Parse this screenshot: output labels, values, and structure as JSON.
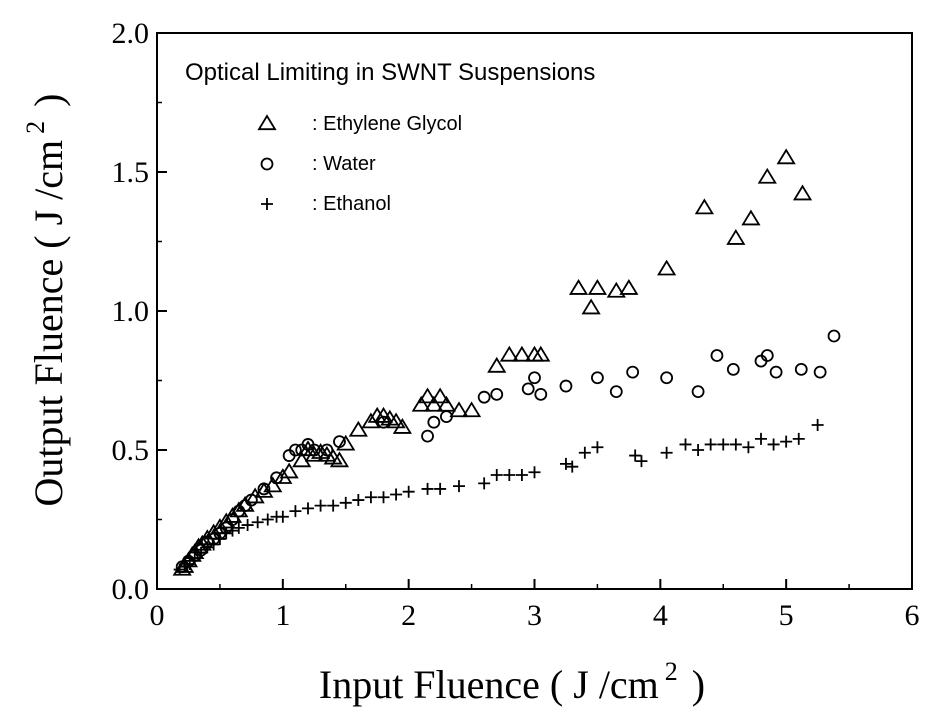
{
  "chart_data": {
    "type": "scatter",
    "title": "Optical Limiting in SWNT Suspensions",
    "xlabel": "Input Fluence ( J /cm 2 )",
    "xlabel_parts": {
      "main": "Input Fluence ( J /cm",
      "sup": "2",
      "close": ")"
    },
    "ylabel": "Output Fluence ( J /cm 2 )",
    "ylabel_parts": {
      "main": "Output Fluence ( J /cm",
      "sup": "2",
      "close": ")"
    },
    "xlim": [
      0,
      6
    ],
    "ylim": [
      0,
      2.0
    ],
    "xticks": [
      "0",
      "1",
      "2",
      "3",
      "4",
      "5",
      "6"
    ],
    "yticks": [
      "0.0",
      "0.5",
      "1.0",
      "1.5",
      "2.0"
    ],
    "legend_placement": "top-left",
    "grid": false,
    "series": [
      {
        "name": ": Ethylene Glycol",
        "marker": "triangle",
        "points": [
          [
            0.2,
            0.07
          ],
          [
            0.22,
            0.08
          ],
          [
            0.25,
            0.1
          ],
          [
            0.28,
            0.12
          ],
          [
            0.3,
            0.13
          ],
          [
            0.33,
            0.15
          ],
          [
            0.36,
            0.16
          ],
          [
            0.4,
            0.18
          ],
          [
            0.45,
            0.2
          ],
          [
            0.5,
            0.22
          ],
          [
            0.55,
            0.24
          ],
          [
            0.6,
            0.26
          ],
          [
            0.65,
            0.28
          ],
          [
            0.7,
            0.3
          ],
          [
            0.78,
            0.33
          ],
          [
            0.85,
            0.35
          ],
          [
            0.92,
            0.37
          ],
          [
            1.0,
            0.4
          ],
          [
            1.05,
            0.42
          ],
          [
            1.15,
            0.46
          ],
          [
            1.2,
            0.5
          ],
          [
            1.25,
            0.48
          ],
          [
            1.3,
            0.49
          ],
          [
            1.35,
            0.48
          ],
          [
            1.4,
            0.47
          ],
          [
            1.45,
            0.46
          ],
          [
            1.5,
            0.52
          ],
          [
            1.6,
            0.57
          ],
          [
            1.7,
            0.6
          ],
          [
            1.75,
            0.62
          ],
          [
            1.8,
            0.62
          ],
          [
            1.85,
            0.61
          ],
          [
            1.9,
            0.6
          ],
          [
            1.95,
            0.58
          ],
          [
            2.1,
            0.66
          ],
          [
            2.15,
            0.69
          ],
          [
            2.2,
            0.66
          ],
          [
            2.25,
            0.69
          ],
          [
            2.3,
            0.66
          ],
          [
            2.4,
            0.64
          ],
          [
            2.5,
            0.64
          ],
          [
            2.7,
            0.8
          ],
          [
            2.8,
            0.84
          ],
          [
            2.9,
            0.84
          ],
          [
            3.0,
            0.84
          ],
          [
            3.05,
            0.84
          ],
          [
            3.35,
            1.08
          ],
          [
            3.45,
            1.01
          ],
          [
            3.5,
            1.08
          ],
          [
            3.65,
            1.07
          ],
          [
            3.75,
            1.08
          ],
          [
            4.05,
            1.15
          ],
          [
            4.35,
            1.37
          ],
          [
            4.6,
            1.26
          ],
          [
            4.72,
            1.33
          ],
          [
            4.85,
            1.48
          ],
          [
            5.0,
            1.55
          ],
          [
            5.13,
            1.42
          ]
        ]
      },
      {
        "name": ": Water",
        "marker": "circle",
        "points": [
          [
            0.2,
            0.08
          ],
          [
            0.25,
            0.1
          ],
          [
            0.3,
            0.12
          ],
          [
            0.35,
            0.14
          ],
          [
            0.4,
            0.17
          ],
          [
            0.45,
            0.18
          ],
          [
            0.5,
            0.2
          ],
          [
            0.55,
            0.22
          ],
          [
            0.6,
            0.25
          ],
          [
            0.65,
            0.28
          ],
          [
            0.7,
            0.3
          ],
          [
            0.75,
            0.32
          ],
          [
            0.85,
            0.36
          ],
          [
            0.95,
            0.4
          ],
          [
            1.05,
            0.48
          ],
          [
            1.1,
            0.5
          ],
          [
            1.15,
            0.5
          ],
          [
            1.2,
            0.52
          ],
          [
            1.25,
            0.5
          ],
          [
            1.35,
            0.5
          ],
          [
            1.45,
            0.53
          ],
          [
            1.8,
            0.6
          ],
          [
            2.15,
            0.55
          ],
          [
            2.2,
            0.6
          ],
          [
            2.3,
            0.62
          ],
          [
            2.6,
            0.69
          ],
          [
            2.7,
            0.7
          ],
          [
            2.95,
            0.72
          ],
          [
            3.0,
            0.76
          ],
          [
            3.05,
            0.7
          ],
          [
            3.25,
            0.73
          ],
          [
            3.5,
            0.76
          ],
          [
            3.65,
            0.71
          ],
          [
            3.78,
            0.78
          ],
          [
            4.05,
            0.76
          ],
          [
            4.3,
            0.71
          ],
          [
            4.45,
            0.84
          ],
          [
            4.58,
            0.79
          ],
          [
            4.8,
            0.82
          ],
          [
            4.85,
            0.84
          ],
          [
            4.92,
            0.78
          ],
          [
            5.12,
            0.79
          ],
          [
            5.27,
            0.78
          ],
          [
            5.38,
            0.91
          ]
        ]
      },
      {
        "name": ":  Ethanol",
        "marker": "plus",
        "points": [
          [
            0.18,
            0.07
          ],
          [
            0.22,
            0.08
          ],
          [
            0.26,
            0.09
          ],
          [
            0.3,
            0.11
          ],
          [
            0.35,
            0.13
          ],
          [
            0.4,
            0.15
          ],
          [
            0.45,
            0.16
          ],
          [
            0.5,
            0.18
          ],
          [
            0.55,
            0.2
          ],
          [
            0.6,
            0.21
          ],
          [
            0.65,
            0.22
          ],
          [
            0.72,
            0.23
          ],
          [
            0.8,
            0.24
          ],
          [
            0.88,
            0.25
          ],
          [
            0.95,
            0.26
          ],
          [
            1.0,
            0.26
          ],
          [
            1.1,
            0.28
          ],
          [
            1.2,
            0.29
          ],
          [
            1.3,
            0.3
          ],
          [
            1.4,
            0.3
          ],
          [
            1.5,
            0.31
          ],
          [
            1.6,
            0.32
          ],
          [
            1.7,
            0.33
          ],
          [
            1.8,
            0.33
          ],
          [
            1.9,
            0.34
          ],
          [
            2.0,
            0.35
          ],
          [
            2.15,
            0.36
          ],
          [
            2.25,
            0.36
          ],
          [
            2.4,
            0.37
          ],
          [
            2.6,
            0.38
          ],
          [
            2.7,
            0.41
          ],
          [
            2.8,
            0.41
          ],
          [
            2.9,
            0.41
          ],
          [
            3.0,
            0.42
          ],
          [
            3.25,
            0.45
          ],
          [
            3.3,
            0.44
          ],
          [
            3.4,
            0.49
          ],
          [
            3.5,
            0.51
          ],
          [
            3.8,
            0.48
          ],
          [
            3.85,
            0.46
          ],
          [
            4.05,
            0.49
          ],
          [
            4.2,
            0.52
          ],
          [
            4.3,
            0.5
          ],
          [
            4.4,
            0.52
          ],
          [
            4.5,
            0.52
          ],
          [
            4.6,
            0.52
          ],
          [
            4.7,
            0.51
          ],
          [
            4.8,
            0.54
          ],
          [
            4.9,
            0.52
          ],
          [
            5.0,
            0.53
          ],
          [
            5.1,
            0.54
          ],
          [
            5.25,
            0.59
          ]
        ]
      }
    ]
  }
}
